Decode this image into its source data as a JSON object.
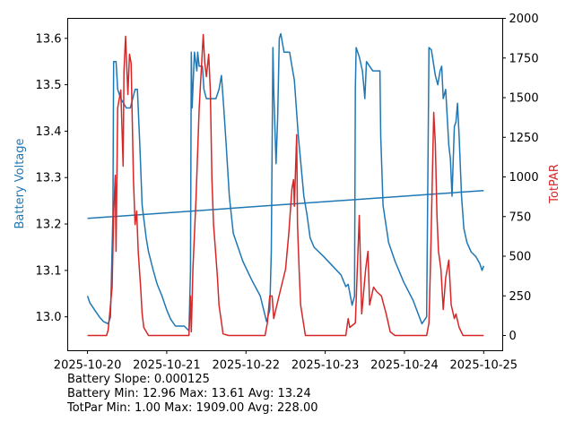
{
  "chart_data": {
    "type": "line",
    "xlabel": "",
    "x_tick_labels": [
      "2025-10-20",
      "2025-10-21",
      "2025-10-22",
      "2025-10-23",
      "2025-10-24",
      "2025-10-25"
    ],
    "x_unit": "days since 2025-10-20",
    "xlim": [
      -0.25,
      5.24
    ],
    "left_axis": {
      "label": "Battery Voltage",
      "color": "#1f77b4",
      "ylim": [
        12.927,
        13.643
      ],
      "ticks": [
        13.0,
        13.1,
        13.2,
        13.3,
        13.4,
        13.5,
        13.6
      ],
      "tick_labels": [
        "13.0",
        "13.1",
        "13.2",
        "13.3",
        "13.4",
        "13.5",
        "13.6"
      ]
    },
    "right_axis": {
      "label": "TotPAR",
      "color": "#d62728",
      "ylim": [
        -96,
        2000
      ],
      "ticks": [
        0,
        250,
        500,
        750,
        1000,
        1250,
        1500,
        1750,
        2000
      ],
      "tick_labels": [
        "0",
        "250",
        "500",
        "750",
        "1000",
        "1250",
        "1500",
        "1750",
        "2000"
      ]
    },
    "series": [
      {
        "name": "Battery Voltage",
        "axis": "left",
        "color": "#1f77b4",
        "x": [
          0,
          0.03,
          0.09,
          0.15,
          0.2,
          0.26,
          0.29,
          0.32,
          0.33,
          0.36,
          0.38,
          0.42,
          0.49,
          0.54,
          0.6,
          0.63,
          0.66,
          0.69,
          0.74,
          0.77,
          0.83,
          0.88,
          0.94,
          1.0,
          1.05,
          1.11,
          1.22,
          1.28,
          1.3,
          1.31,
          1.32,
          1.35,
          1.38,
          1.39,
          1.41,
          1.45,
          1.47,
          1.5,
          1.62,
          1.66,
          1.69,
          1.72,
          1.75,
          1.79,
          1.84,
          1.9,
          1.96,
          2.07,
          2.18,
          2.26,
          2.3,
          2.32,
          2.34,
          2.35,
          2.38,
          2.4,
          2.42,
          2.44,
          2.48,
          2.55,
          2.58,
          2.61,
          2.66,
          2.73,
          2.77,
          2.81,
          2.86,
          2.98,
          3.09,
          3.2,
          3.26,
          3.29,
          3.34,
          3.37,
          3.38,
          3.39,
          3.43,
          3.47,
          3.5,
          3.52,
          3.6,
          3.69,
          3.7,
          3.73,
          3.8,
          3.88,
          3.99,
          4.11,
          4.22,
          4.28,
          4.31,
          4.34,
          4.39,
          4.42,
          4.45,
          4.47,
          4.49,
          4.52,
          4.56,
          4.58,
          4.6,
          4.63,
          4.65,
          4.67,
          4.69,
          4.72,
          4.75,
          4.79,
          4.84,
          4.9,
          4.95,
          4.98,
          5.0
        ],
        "y": [
          13.045,
          13.03,
          13.015,
          13.0,
          12.99,
          12.985,
          13.0,
          13.22,
          13.55,
          13.55,
          13.49,
          13.47,
          13.45,
          13.45,
          13.49,
          13.49,
          13.37,
          13.24,
          13.17,
          13.14,
          13.1,
          13.07,
          13.045,
          13.015,
          12.995,
          12.98,
          12.98,
          12.97,
          13.1,
          13.57,
          13.45,
          13.57,
          13.53,
          13.57,
          13.54,
          13.54,
          13.49,
          13.47,
          13.47,
          13.49,
          13.52,
          13.45,
          13.37,
          13.26,
          13.18,
          13.15,
          13.12,
          13.08,
          13.045,
          12.99,
          13.015,
          13.14,
          13.58,
          13.49,
          13.33,
          13.43,
          13.6,
          13.61,
          13.57,
          13.57,
          13.54,
          13.51,
          13.39,
          13.26,
          13.22,
          13.17,
          13.15,
          13.13,
          13.11,
          13.09,
          13.065,
          13.07,
          13.025,
          13.045,
          13.49,
          13.58,
          13.56,
          13.53,
          13.47,
          13.55,
          13.53,
          13.53,
          13.39,
          13.24,
          13.16,
          13.12,
          13.075,
          13.035,
          12.985,
          13.0,
          13.58,
          13.575,
          13.52,
          13.5,
          13.53,
          13.54,
          13.47,
          13.49,
          13.37,
          13.34,
          13.26,
          13.41,
          13.42,
          13.46,
          13.39,
          13.26,
          13.19,
          13.16,
          13.14,
          13.13,
          13.115,
          13.1,
          13.11
        ]
      },
      {
        "name": "Battery Trend",
        "axis": "left",
        "color": "#1f77b4",
        "x": [
          0,
          5.0
        ],
        "y": [
          13.212,
          13.272
        ]
      },
      {
        "name": "TotPAR",
        "axis": "right",
        "color": "#d62728",
        "x": [
          0,
          0.24,
          0.26,
          0.28,
          0.31,
          0.33,
          0.35,
          0.36,
          0.38,
          0.42,
          0.45,
          0.46,
          0.48,
          0.51,
          0.53,
          0.55,
          0.58,
          0.6,
          0.62,
          0.64,
          0.67,
          0.69,
          0.71,
          0.77,
          1.28,
          1.3,
          1.31,
          1.33,
          1.37,
          1.41,
          1.46,
          1.48,
          1.5,
          1.53,
          1.55,
          1.57,
          1.59,
          1.62,
          1.64,
          1.66,
          1.71,
          1.78,
          2.24,
          2.27,
          2.3,
          2.33,
          2.35,
          2.39,
          2.43,
          2.5,
          2.54,
          2.58,
          2.6,
          2.61,
          2.64,
          2.65,
          2.67,
          2.69,
          2.75,
          3.26,
          3.29,
          3.31,
          3.38,
          3.43,
          3.46,
          3.51,
          3.54,
          3.56,
          3.61,
          3.65,
          3.71,
          3.77,
          3.82,
          3.88,
          4.28,
          4.31,
          4.33,
          4.37,
          4.39,
          4.41,
          4.43,
          4.46,
          4.49,
          4.52,
          4.56,
          4.59,
          4.63,
          4.65,
          4.69,
          4.74,
          5.0
        ],
        "y": [
          0,
          0,
          34,
          136,
          305,
          757,
          1011,
          531,
          1435,
          1548,
          1068,
          1661,
          1887,
          1520,
          1774,
          1718,
          983,
          700,
          785,
          531,
          305,
          136,
          51,
          0,
          0,
          249,
          23,
          418,
          870,
          1435,
          1898,
          1718,
          1633,
          1774,
          1548,
          983,
          700,
          503,
          362,
          192,
          11,
          0,
          0,
          79,
          249,
          249,
          107,
          192,
          277,
          418,
          644,
          927,
          983,
          815,
          1266,
          701,
          418,
          192,
          0,
          0,
          107,
          51,
          79,
          757,
          136,
          418,
          531,
          192,
          305,
          277,
          249,
          136,
          23,
          0,
          0,
          79,
          475,
          1407,
          1209,
          757,
          531,
          418,
          164,
          362,
          475,
          192,
          107,
          136,
          51,
          0,
          0
        ]
      }
    ]
  },
  "stats": {
    "slope": "Battery Slope: 0.000125",
    "battery": "Battery Min: 12.96 Max: 13.61 Avg: 13.24",
    "totpar": "TotPar Min: 1.00 Max: 1909.00 Avg: 228.00"
  }
}
